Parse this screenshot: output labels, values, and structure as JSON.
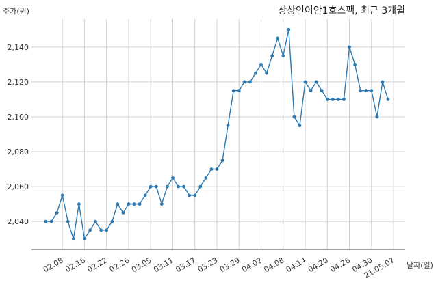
{
  "chart_data": {
    "type": "line",
    "title": "상상인이안1호스팩, 최근 3개월",
    "xlabel": "날짜(일)",
    "ylabel": "주가(원)",
    "ylim": [
      2024,
      2156
    ],
    "yticks": [
      2040,
      2060,
      2080,
      2100,
      2120,
      2140
    ],
    "ytick_labels": [
      "2,040",
      "2,060",
      "2,080",
      "2,100",
      "2,120",
      "2,140"
    ],
    "xtick_labels": [
      "02.08",
      "02.16",
      "02.22",
      "02.26",
      "03.05",
      "03.11",
      "03.17",
      "03.23",
      "03.29",
      "04.02",
      "04.08",
      "04.14",
      "04.20",
      "04.26",
      "04.30",
      "21.05.07"
    ],
    "xtick_index": [
      3,
      7,
      11,
      15,
      19,
      23,
      27,
      31,
      35,
      39,
      43,
      47,
      51,
      55,
      59,
      63
    ],
    "grid": true,
    "series": [
      {
        "values": [
          2040,
          2040,
          2045,
          2055,
          2040,
          2030,
          2050,
          2030,
          2035,
          2040,
          2035,
          2035,
          2040,
          2050,
          2045,
          2050,
          2050,
          2050,
          2055,
          2060,
          2060,
          2050,
          2060,
          2065,
          2060,
          2060,
          2055,
          2055,
          2060,
          2065,
          2070,
          2070,
          2075,
          2095,
          2115,
          2115,
          2120,
          2120,
          2125,
          2130,
          2125,
          2135,
          2145,
          2135,
          2150,
          2100,
          2095,
          2120,
          2115,
          2120,
          2115,
          2110,
          2110,
          2110,
          2110,
          2140,
          2130,
          2115,
          2115,
          2115,
          2100,
          2120,
          2110
        ],
        "color": "#2c78b0"
      }
    ]
  }
}
